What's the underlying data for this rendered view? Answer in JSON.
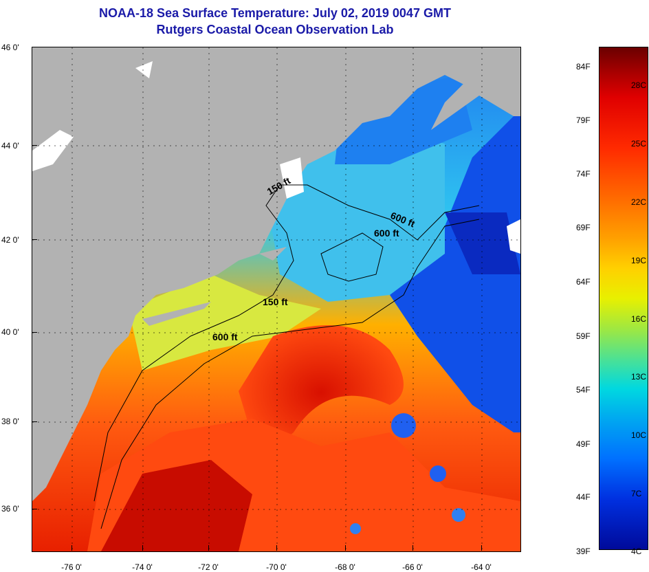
{
  "header": {
    "title_line1": "NOAA-18 Sea Surface Temperature:  July 02, 2019 0047 GMT",
    "title_line2": "Rutgers Coastal Ocean Observation Lab"
  },
  "map": {
    "lat_labels": [
      "46 0'",
      "44 0'",
      "42 0'",
      "40 0'",
      "38 0'",
      "36 0'"
    ],
    "lon_labels": [
      "-76 0'",
      "-74 0'",
      "-72 0'",
      "-70 0'",
      "-68 0'",
      "-66 0'",
      "-64 0'"
    ],
    "contour_labels": [
      "150 ft",
      "600 ft",
      "600 ft",
      "600 ft",
      "150 ft"
    ],
    "colors": {
      "land": "#b2b2b2",
      "cloud": "#ffffff",
      "cold_water": "#1050e8",
      "mid_water": "#30c0f0",
      "warm_water": "#ff6a10",
      "hot_water": "#e01000"
    }
  },
  "colorbar": {
    "fahrenheit": [
      "84F",
      "79F",
      "74F",
      "69F",
      "64F",
      "59F",
      "54F",
      "49F",
      "44F",
      "39F"
    ],
    "celsius": [
      "28C",
      "25C",
      "22C",
      "19C",
      "16C",
      "13C",
      "10C",
      "7C",
      "4C"
    ]
  }
}
